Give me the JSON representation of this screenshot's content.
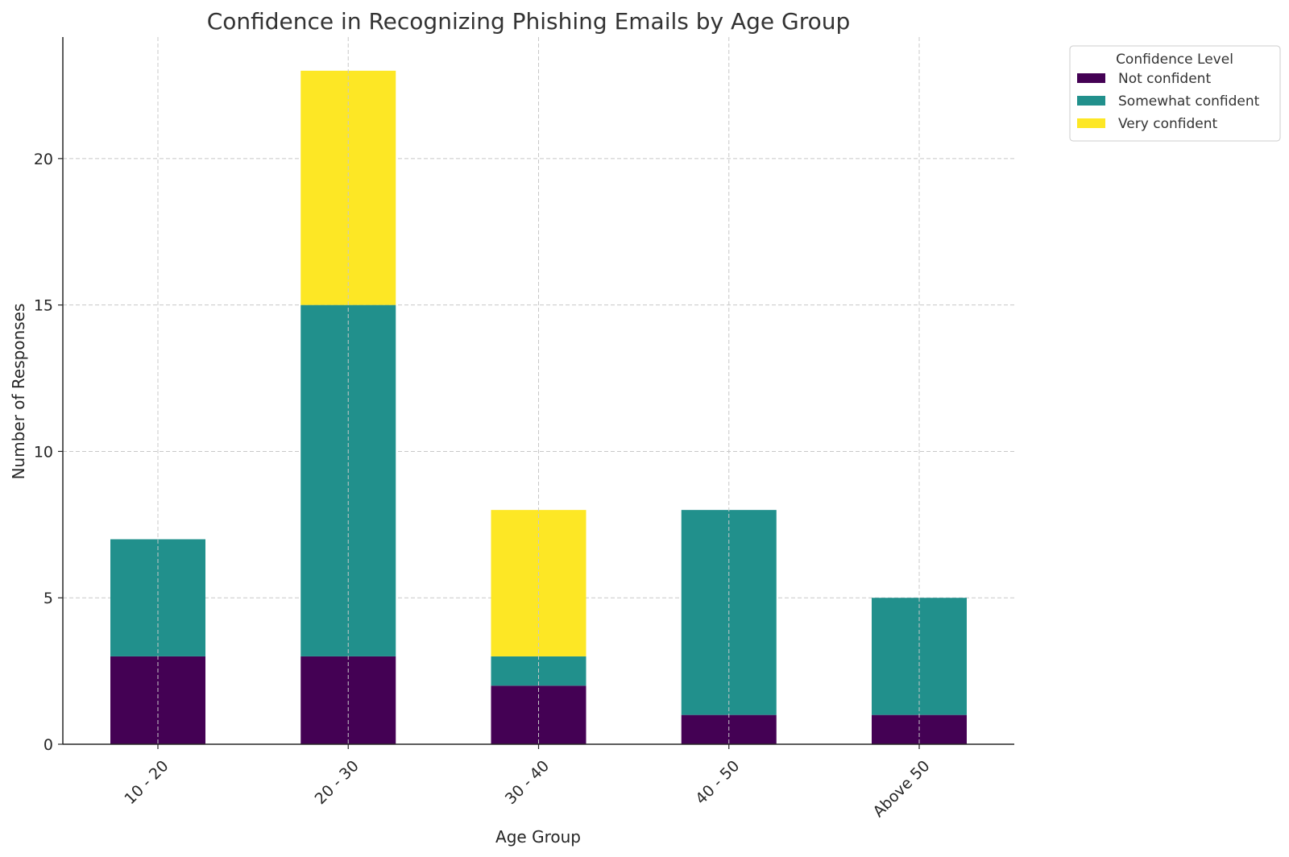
{
  "chart_data": {
    "type": "bar",
    "stacked": true,
    "title": "Confidence in Recognizing Phishing Emails by Age Group",
    "xlabel": "Age Group",
    "ylabel": "Number of Responses",
    "categories": [
      "10 - 20",
      "20 - 30",
      "30 - 40",
      "40 - 50",
      "Above 50"
    ],
    "series": [
      {
        "name": "Not confident",
        "color": "#440154",
        "values": [
          3,
          3,
          2,
          1,
          1
        ]
      },
      {
        "name": "Somewhat confident",
        "color": "#21908c",
        "values": [
          4,
          12,
          1,
          7,
          4
        ]
      },
      {
        "name": "Very confident",
        "color": "#fde725",
        "values": [
          0,
          8,
          5,
          0,
          0
        ]
      }
    ],
    "ylim": [
      0,
      24.15
    ],
    "yticks": [
      0,
      5,
      10,
      15,
      20
    ],
    "grid": true,
    "legend": {
      "title": "Confidence Level",
      "placement": "outside-top-right"
    }
  }
}
